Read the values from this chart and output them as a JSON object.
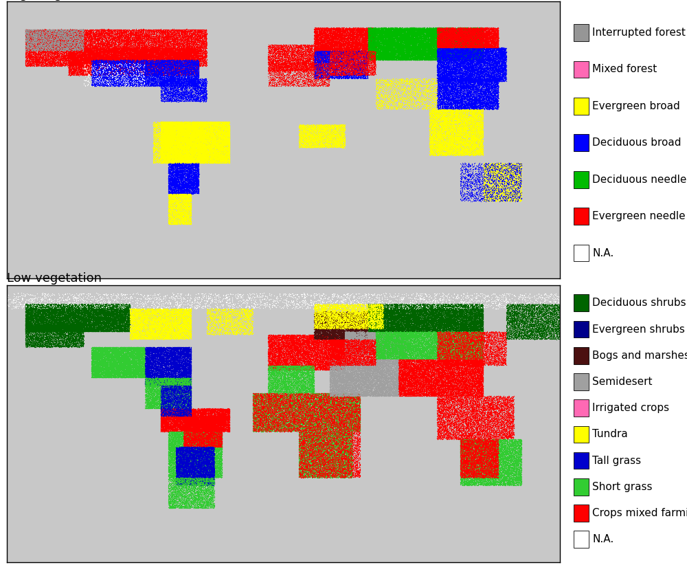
{
  "fig_width": 10.0,
  "fig_height": 8.22,
  "fig_bg": "#ffffff",
  "top_title": "High vegetation",
  "bottom_title": "Low vegetation",
  "title_fontsize": 13,
  "legend_fontsize": 11,
  "map_bg": "#c8c8c8",
  "ocean_bg": "#c8c8c8",
  "land_bg": "#c8c8c8",
  "border_color": "#000000",
  "high_veg_legend": [
    {
      "label": "Interrupted forest",
      "color": "#969696"
    },
    {
      "label": "Mixed forest",
      "color": "#ff69b4"
    },
    {
      "label": "Evergreen broad",
      "color": "#ffff00"
    },
    {
      "label": "Deciduous broad",
      "color": "#0000ff"
    },
    {
      "label": "Deciduous needle",
      "color": "#00bb00"
    },
    {
      "label": "Evergreen needle",
      "color": "#ff0000"
    },
    {
      "label": "N.A.",
      "color": "#ffffff"
    }
  ],
  "low_veg_legend": [
    {
      "label": "Deciduous shrubs",
      "color": "#006400"
    },
    {
      "label": "Evergreen shrubs",
      "color": "#00008b"
    },
    {
      "label": "Bogs and marshes",
      "color": "#4b1010"
    },
    {
      "label": "Semidesert",
      "color": "#a0a0a0"
    },
    {
      "label": "Irrigated crops",
      "color": "#ff69b4"
    },
    {
      "label": "Tundra",
      "color": "#ffff00"
    },
    {
      "label": "Tall grass",
      "color": "#0000cd"
    },
    {
      "label": "Short grass",
      "color": "#32cd32"
    },
    {
      "label": "Crops mixed farming",
      "color": "#ff0000"
    },
    {
      "label": "N.A.",
      "color": "#ffffff"
    }
  ],
  "high_regions": [
    {
      "lon0": -168,
      "lon1": -50,
      "lat0": 48,
      "lat1": 72,
      "color": "#ff0000",
      "n": 25000
    },
    {
      "lon0": -140,
      "lon1": -55,
      "lat0": 42,
      "lat1": 60,
      "color": "#ff0000",
      "n": 15000
    },
    {
      "lon0": -125,
      "lon1": -55,
      "lat0": 35,
      "lat1": 52,
      "color": "#0000ff",
      "n": 10000
    },
    {
      "lon0": -80,
      "lon1": -50,
      "lat0": 25,
      "lat1": 40,
      "color": "#0000ff",
      "n": 3000
    },
    {
      "lon0": -80,
      "lon1": -35,
      "lat0": -15,
      "lat1": 12,
      "color": "#ffff00",
      "n": 18000
    },
    {
      "lon0": -75,
      "lon1": -55,
      "lat0": -35,
      "lat1": -15,
      "color": "#0000ff",
      "n": 5000
    },
    {
      "lon0": -75,
      "lon1": -60,
      "lat0": -55,
      "lat1": -35,
      "color": "#ffff00",
      "n": 3000
    },
    {
      "lon0": -10,
      "lon1": 30,
      "lat0": 45,
      "lat1": 62,
      "color": "#ff0000",
      "n": 5000
    },
    {
      "lon0": 20,
      "lon1": 60,
      "lat0": 55,
      "lat1": 73,
      "color": "#ff0000",
      "n": 10000
    },
    {
      "lon0": 55,
      "lon1": 130,
      "lat0": 52,
      "lat1": 73,
      "color": "#00bb00",
      "n": 30000
    },
    {
      "lon0": 100,
      "lon1": 145,
      "lat0": 38,
      "lat1": 60,
      "color": "#0000ff",
      "n": 12000
    },
    {
      "lon0": 100,
      "lon1": 140,
      "lat0": 20,
      "lat1": 40,
      "color": "#0000ff",
      "n": 8000
    },
    {
      "lon0": 95,
      "lon1": 130,
      "lat0": -10,
      "lat1": 20,
      "color": "#ffff00",
      "n": 10000
    },
    {
      "lon0": 10,
      "lon1": 40,
      "lat0": -5,
      "lat1": 10,
      "color": "#ffff00",
      "n": 4000
    },
    {
      "lon0": -85,
      "lon1": -50,
      "lat0": -15,
      "lat1": 12,
      "color": "#ffff00",
      "n": 5000
    },
    {
      "lon0": 20,
      "lon1": 55,
      "lat0": 40,
      "lat1": 58,
      "color": "#0000ff",
      "n": 5000
    },
    {
      "lon0": 100,
      "lon1": 140,
      "lat0": 60,
      "lat1": 73,
      "color": "#ff0000",
      "n": 8000
    },
    {
      "lon0": -168,
      "lon1": -130,
      "lat0": 58,
      "lat1": 72,
      "color": "#969696",
      "n": 3000
    },
    {
      "lon0": 130,
      "lon1": 155,
      "lat0": -40,
      "lat1": -15,
      "color": "#ffff00",
      "n": 3000
    },
    {
      "lon0": 115,
      "lon1": 155,
      "lat0": -40,
      "lat1": -15,
      "color": "#0000ff",
      "n": 2000
    },
    {
      "lon0": -10,
      "lon1": 30,
      "lat0": 35,
      "lat1": 50,
      "color": "#ff0000",
      "n": 2000
    },
    {
      "lon0": 30,
      "lon1": 60,
      "lat0": 42,
      "lat1": 58,
      "color": "#ff0000",
      "n": 3000
    },
    {
      "lon0": -130,
      "lon1": -90,
      "lat0": 35,
      "lat1": 50,
      "color": "#ffffff",
      "n": 500
    },
    {
      "lon0": 60,
      "lon1": 100,
      "lat0": 20,
      "lat1": 40,
      "color": "#ffff00",
      "n": 2000
    }
  ],
  "low_regions": [
    {
      "lon0": -168,
      "lon1": -100,
      "lat0": 60,
      "lat1": 78,
      "color": "#006400",
      "n": 18000
    },
    {
      "lon0": -100,
      "lon1": -60,
      "lat0": 55,
      "lat1": 75,
      "color": "#ffff00",
      "n": 8000
    },
    {
      "lon0": -168,
      "lon1": -130,
      "lat0": 50,
      "lat1": 65,
      "color": "#006400",
      "n": 5000
    },
    {
      "lon0": -125,
      "lon1": -90,
      "lat0": 30,
      "lat1": 50,
      "color": "#32cd32",
      "n": 12000
    },
    {
      "lon0": -90,
      "lon1": -60,
      "lat0": 25,
      "lat1": 50,
      "color": "#0000cd",
      "n": 10000
    },
    {
      "lon0": -90,
      "lon1": -60,
      "lat0": 10,
      "lat1": 30,
      "color": "#32cd32",
      "n": 6000
    },
    {
      "lon0": -80,
      "lon1": -35,
      "lat0": -5,
      "lat1": 10,
      "color": "#ff0000",
      "n": 10000
    },
    {
      "lon0": -75,
      "lon1": -40,
      "lat0": -35,
      "lat1": -5,
      "color": "#32cd32",
      "n": 12000
    },
    {
      "lon0": -65,
      "lon1": -40,
      "lat0": -15,
      "lat1": 5,
      "color": "#ff0000",
      "n": 5000
    },
    {
      "lon0": -70,
      "lon1": -45,
      "lat0": -40,
      "lat1": -15,
      "color": "#0000cd",
      "n": 8000
    },
    {
      "lon0": -75,
      "lon1": -45,
      "lat0": -55,
      "lat1": -35,
      "color": "#32cd32",
      "n": 4000
    },
    {
      "lon0": -10,
      "lon1": 40,
      "lat0": 35,
      "lat1": 58,
      "color": "#ff0000",
      "n": 12000
    },
    {
      "lon0": -10,
      "lon1": 20,
      "lat0": 20,
      "lat1": 38,
      "color": "#32cd32",
      "n": 5000
    },
    {
      "lon0": -20,
      "lon1": 50,
      "lat0": -5,
      "lat1": 20,
      "color": "#32cd32",
      "n": 15000
    },
    {
      "lon0": 10,
      "lon1": 45,
      "lat0": -35,
      "lat1": -5,
      "color": "#32cd32",
      "n": 10000
    },
    {
      "lon0": -20,
      "lon1": 50,
      "lat0": -5,
      "lat1": 20,
      "color": "#ff0000",
      "n": 8000
    },
    {
      "lon0": 10,
      "lon1": 50,
      "lat0": -35,
      "lat1": -5,
      "color": "#ff0000",
      "n": 5000
    },
    {
      "lon0": 20,
      "lon1": 55,
      "lat0": 55,
      "lat1": 73,
      "color": "#4b1010",
      "n": 8000
    },
    {
      "lon0": 40,
      "lon1": 80,
      "lat0": 45,
      "lat1": 60,
      "color": "#a0a0a0",
      "n": 8000
    },
    {
      "lon0": 55,
      "lon1": 130,
      "lat0": 60,
      "lat1": 78,
      "color": "#006400",
      "n": 20000
    },
    {
      "lon0": 60,
      "lon1": 130,
      "lat0": 42,
      "lat1": 60,
      "color": "#32cd32",
      "n": 15000
    },
    {
      "lon0": 30,
      "lon1": 75,
      "lat0": 18,
      "lat1": 42,
      "color": "#a0a0a0",
      "n": 12000
    },
    {
      "lon0": 75,
      "lon1": 130,
      "lat0": 18,
      "lat1": 42,
      "color": "#ff0000",
      "n": 15000
    },
    {
      "lon0": 100,
      "lon1": 150,
      "lat0": -10,
      "lat1": 18,
      "color": "#ff0000",
      "n": 8000
    },
    {
      "lon0": 100,
      "lon1": 145,
      "lat0": 38,
      "lat1": 60,
      "color": "#ff0000",
      "n": 5000
    },
    {
      "lon0": 115,
      "lon1": 155,
      "lat0": -40,
      "lat1": -10,
      "color": "#32cd32",
      "n": 12000
    },
    {
      "lon0": 115,
      "lon1": 140,
      "lat0": -35,
      "lat1": -10,
      "color": "#ff0000",
      "n": 5000
    },
    {
      "lon0": -80,
      "lon1": -60,
      "lat0": 5,
      "lat1": 25,
      "color": "#0000cd",
      "n": 3000
    },
    {
      "lon0": -180,
      "lon1": 180,
      "lat0": 75,
      "lat1": 85,
      "color": "#ffffff",
      "n": 3000
    },
    {
      "lon0": 145,
      "lon1": 180,
      "lat0": 55,
      "lat1": 78,
      "color": "#006400",
      "n": 5000
    },
    {
      "lon0": 30,
      "lon1": 60,
      "lat0": 38,
      "lat1": 55,
      "color": "#ff0000",
      "n": 4000
    },
    {
      "lon0": -50,
      "lon1": -20,
      "lat0": 58,
      "lat1": 75,
      "color": "#ffff00",
      "n": 2000
    },
    {
      "lon0": 20,
      "lon1": 65,
      "lat0": 62,
      "lat1": 78,
      "color": "#ffff00",
      "n": 5000
    }
  ]
}
